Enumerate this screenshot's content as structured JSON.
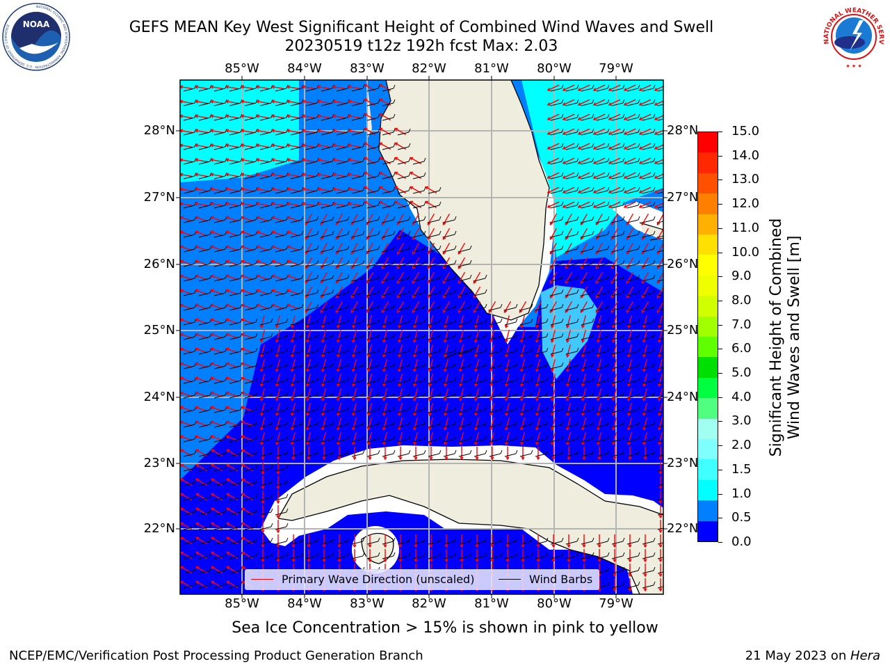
{
  "title": {
    "line1": "GEFS MEAN Key West Significant Height of Combined Wind Waves and Swell",
    "line2": "20230519 t12z 192h fcst   Max: 2.03"
  },
  "map": {
    "lon_labels": [
      "85°W",
      "84°W",
      "83°W",
      "82°W",
      "81°W",
      "80°W",
      "79°W"
    ],
    "lat_labels": [
      "28°N",
      "27°N",
      "26°N",
      "25°N",
      "24°N",
      "23°N",
      "22°N"
    ],
    "legend": {
      "wave_direction": "Primary Wave Direction (unscaled)",
      "wind_barbs": "Wind Barbs"
    }
  },
  "colorbar": {
    "label_line1": "Significant Height of Combined",
    "label_line2": "Wind Waves and Swell [m]",
    "ticks": [
      "15.0",
      "14.0",
      "13.0",
      "12.0",
      "11.0",
      "10.0",
      "9.0",
      "8.0",
      "7.0",
      "6.0",
      "5.0",
      "4.0",
      "3.0",
      "2.0",
      "1.5",
      "1.0",
      "0.5",
      "0.0"
    ],
    "colors": [
      "#0000ff",
      "#0080ff",
      "#00ffff",
      "#40ffff",
      "#80ffff",
      "#a0fff0",
      "#50ff80",
      "#00ff40",
      "#00e000",
      "#60ff00",
      "#a0ff00",
      "#d0ff00",
      "#f0ff00",
      "#ffff00",
      "#ffe000",
      "#ffb000",
      "#ff8000",
      "#ff5000",
      "#ff2800",
      "#ff0000"
    ]
  },
  "note": "Sea Ice Concentration > 15% is shown in pink to yellow",
  "footer": {
    "left": "NCEP/EMC/Verification Post Processing Product Generation Branch",
    "date": "21 May 2023 on ",
    "machine": "Hera"
  },
  "logos": {
    "left_text": "NOAA",
    "left_ring": "NATIONAL OCEANIC AND ATMOSPHERIC ADMINISTRATION · U.S. DEPARTMENT OF COMMERCE",
    "right_ring": "NATIONAL WEATHER SERVICE"
  }
}
